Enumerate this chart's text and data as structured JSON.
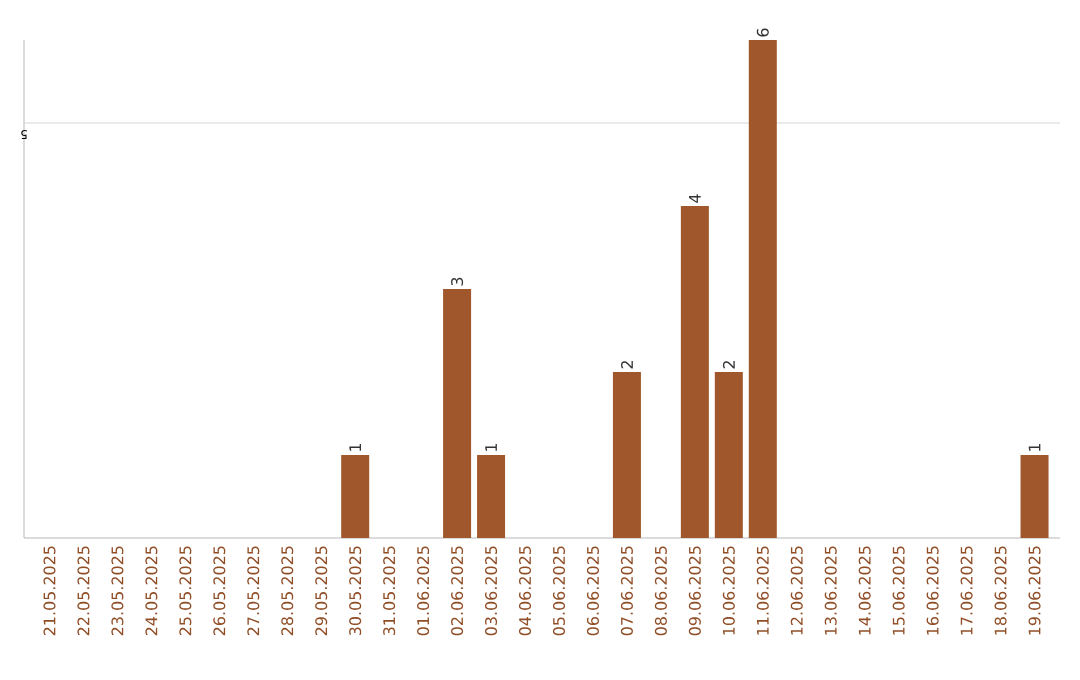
{
  "chart_data": {
    "type": "bar",
    "categories": [
      "21.05.2025",
      "22.05.2025",
      "23.05.2025",
      "24.05.2025",
      "25.05.2025",
      "26.05.2025",
      "27.05.2025",
      "28.05.2025",
      "29.05.2025",
      "30.05.2025",
      "31.05.2025",
      "01.06.2025",
      "02.06.2025",
      "03.06.2025",
      "04.06.2025",
      "05.06.2025",
      "06.06.2025",
      "07.06.2025",
      "08.06.2025",
      "09.06.2025",
      "10.06.2025",
      "11.06.2025",
      "12.06.2025",
      "13.06.2025",
      "14.06.2025",
      "15.06.2025",
      "16.06.2025",
      "17.06.2025",
      "18.06.2025",
      "19.06.2025"
    ],
    "values": [
      0,
      0,
      0,
      0,
      0,
      0,
      0,
      0,
      0,
      1,
      0,
      0,
      3,
      1,
      0,
      0,
      0,
      2,
      0,
      4,
      2,
      6,
      0,
      0,
      0,
      0,
      0,
      0,
      0,
      1
    ],
    "value_labels": [
      null,
      null,
      null,
      null,
      null,
      null,
      null,
      null,
      null,
      "1",
      null,
      null,
      "3",
      "1",
      null,
      null,
      null,
      "2",
      null,
      "4",
      "2",
      "6",
      null,
      null,
      null,
      null,
      null,
      null,
      null,
      "1"
    ],
    "color": "#a0572b",
    "ylim": [
      0,
      6
    ],
    "ref_lines": [
      {
        "axis": "y",
        "value": 5,
        "label": "5",
        "color": "#cccccc"
      }
    ]
  }
}
